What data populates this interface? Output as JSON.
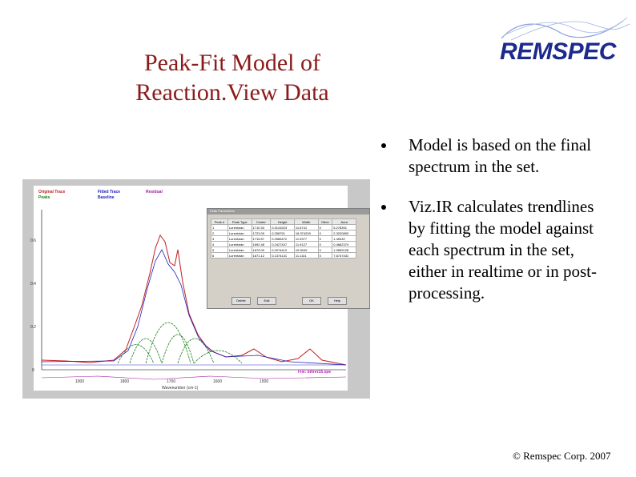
{
  "slide": {
    "title_line1": "Peak-Fit Model of",
    "title_line2": "Reaction.View Data",
    "logo_text": "REMSPEC",
    "footer": "© Remspec Corp. 2007"
  },
  "bullets": [
    "Model is based on the final spectrum in the set.",
    "Viz.IR  calculates trendlines by fitting the model against each spectrum in the set, either in realtime or in post-processing."
  ],
  "screenshot": {
    "legend": {
      "original": "Original Trace",
      "fitted": "Fitted Trace",
      "residual": "Residual",
      "peaks": "Peaks",
      "baseline": "Baseline"
    },
    "file_label": "File:  bilirer16.spe",
    "x_axis_label": "Wavenumber (cm-1)",
    "x_ticks": [
      "1900",
      "1800",
      "1700",
      "1600",
      "1500"
    ],
    "y_ticks": [
      "0.6",
      "0.4",
      "0.2",
      "0"
    ],
    "dialog_title": "Peak Parameters",
    "table_headers": [
      "Peak #",
      "Peak Type",
      "Center",
      "Height",
      "Width",
      "Other",
      "Area"
    ],
    "table_rows": [
      [
        "1",
        "Lorentzian",
        "1710.34",
        "0.3141523",
        "11.6741",
        "0",
        "5.278391"
      ],
      [
        "2",
        "Lorentzian",
        "1723.09",
        "0.258791",
        "18.374209",
        "0",
        "2.3220893"
      ],
      [
        "3",
        "Lorentzian",
        "1715.57",
        "0.2566472",
        "11.9377",
        "0",
        "1.45432"
      ],
      [
        "4",
        "Lorentzian",
        "1692.48",
        "0.2427437",
        "11.9127",
        "0",
        "0.4682374"
      ],
      [
        "5",
        "Lorentzian",
        "1670.09",
        "0.2074419",
        "15.9049",
        "0",
        "1.9559128"
      ],
      [
        "6",
        "Lorentzian",
        "1671.12",
        "0.1374141",
        "11.1141",
        "0",
        "7.6747431"
      ]
    ],
    "dialog_buttons": [
      "Delete",
      "Edit",
      "OK",
      "Help"
    ]
  }
}
